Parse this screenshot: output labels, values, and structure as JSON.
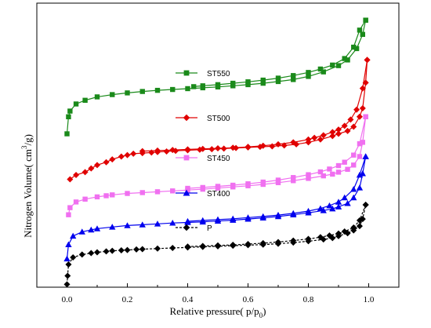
{
  "chart_data": {
    "type": "line",
    "xlabel": "Relative pressure( p/p",
    "xlabel_sub": "0",
    "xlabel_close": ")",
    "ylabel_main": "Nitrogen Volume( cm",
    "ylabel_sup": "3",
    "ylabel_close": "/g)",
    "xlim": [
      -0.1,
      1.1
    ],
    "x_ticks": [
      "0.0",
      "0.2",
      "0.4",
      "0.6",
      "0.8",
      "1.0"
    ],
    "x_tick_values": [
      0.0,
      0.2,
      0.4,
      0.6,
      0.8,
      1.0
    ],
    "y_ticks_labeled": false,
    "ylim": [
      0,
      100
    ],
    "grid": false,
    "legend_placement": "inline",
    "series": [
      {
        "name": "ST550",
        "color": "#1a8a1a",
        "marker": "square",
        "adsorption": {
          "x": [
            0.0,
            0.005,
            0.01,
            0.03,
            0.06,
            0.1,
            0.15,
            0.2,
            0.25,
            0.3,
            0.35,
            0.4,
            0.45,
            0.5,
            0.55,
            0.6,
            0.65,
            0.7,
            0.75,
            0.8,
            0.85,
            0.9,
            0.93,
            0.96,
            0.98,
            0.99
          ],
          "y": [
            54.0,
            60.0,
            62.0,
            64.5,
            65.8,
            67.0,
            67.8,
            68.4,
            68.9,
            69.3,
            69.6,
            69.9,
            70.2,
            70.5,
            70.9,
            71.3,
            71.8,
            72.4,
            73.1,
            74.2,
            75.8,
            78.0,
            80.0,
            84.0,
            89.0,
            94.0
          ]
        },
        "desorption": {
          "x": [
            0.99,
            0.97,
            0.95,
            0.92,
            0.88,
            0.84,
            0.8,
            0.75,
            0.7,
            0.65,
            0.6,
            0.55,
            0.5,
            0.45,
            0.42
          ],
          "y": [
            94.0,
            90.5,
            84.5,
            80.5,
            78.2,
            76.8,
            75.6,
            74.5,
            73.6,
            72.9,
            72.3,
            71.8,
            71.3,
            70.9,
            70.6
          ]
        }
      },
      {
        "name": "ST500",
        "color": "#e00000",
        "marker": "diamond",
        "adsorption": {
          "x": [
            0.01,
            0.03,
            0.06,
            0.08,
            0.1,
            0.13,
            0.15,
            0.18,
            0.2,
            0.22,
            0.25,
            0.28,
            0.3,
            0.33,
            0.36,
            0.4,
            0.44,
            0.48,
            0.52,
            0.56,
            0.6,
            0.64,
            0.68,
            0.72,
            0.76,
            0.8,
            0.84,
            0.88,
            0.9,
            0.93,
            0.95,
            0.97,
            0.98,
            0.99,
            0.995
          ],
          "y": [
            38.0,
            39.5,
            40.5,
            41.8,
            43.0,
            44.0,
            45.0,
            46.0,
            46.5,
            47.0,
            47.2,
            47.4,
            47.6,
            47.8,
            48.0,
            48.2,
            48.4,
            48.6,
            48.8,
            49.0,
            49.2,
            49.4,
            49.6,
            49.9,
            50.3,
            51.0,
            52.0,
            53.2,
            54.0,
            55.0,
            56.5,
            60.0,
            63.0,
            72.0,
            80.0
          ]
        },
        "desorption": {
          "x": [
            0.995,
            0.98,
            0.96,
            0.94,
            0.92,
            0.9,
            0.88,
            0.85,
            0.82,
            0.8,
            0.75,
            0.7,
            0.65,
            0.6,
            0.55,
            0.5,
            0.45,
            0.4,
            0.35,
            0.3,
            0.25
          ],
          "y": [
            80.0,
            70.0,
            62.5,
            59.0,
            56.8,
            55.5,
            54.6,
            53.5,
            52.6,
            52.0,
            51.0,
            50.3,
            49.8,
            49.4,
            49.1,
            48.9,
            48.7,
            48.5,
            48.3,
            48.1,
            47.9
          ]
        }
      },
      {
        "name": "ST450",
        "color": "#f070f0",
        "marker": "square",
        "adsorption": {
          "x": [
            0.005,
            0.01,
            0.03,
            0.06,
            0.1,
            0.13,
            0.15,
            0.2,
            0.25,
            0.3,
            0.35,
            0.4,
            0.45,
            0.5,
            0.55,
            0.6,
            0.65,
            0.7,
            0.75,
            0.8,
            0.85,
            0.88,
            0.9,
            0.93,
            0.95,
            0.97,
            0.98,
            0.99
          ],
          "y": [
            25.5,
            28.0,
            30.0,
            31.0,
            31.8,
            32.2,
            32.5,
            33.0,
            33.3,
            33.6,
            33.9,
            34.2,
            34.5,
            34.9,
            35.3,
            35.7,
            36.2,
            36.8,
            37.5,
            38.3,
            39.2,
            39.8,
            40.5,
            41.5,
            43.0,
            46.0,
            51.0,
            60.0
          ]
        },
        "desorption": {
          "x": [
            0.99,
            0.97,
            0.95,
            0.92,
            0.9,
            0.87,
            0.84,
            0.8,
            0.75,
            0.7,
            0.65,
            0.6,
            0.55,
            0.5,
            0.45,
            0.4
          ],
          "y": [
            60.0,
            50.5,
            46.5,
            44.0,
            42.8,
            41.6,
            40.6,
            39.6,
            38.6,
            37.7,
            37.0,
            36.4,
            35.9,
            35.5,
            35.1,
            34.8
          ]
        }
      },
      {
        "name": "ST400",
        "color": "#0000ee",
        "marker": "triangle",
        "adsorption": {
          "x": [
            0.0,
            0.005,
            0.02,
            0.05,
            0.08,
            0.1,
            0.15,
            0.2,
            0.25,
            0.3,
            0.35,
            0.4,
            0.45,
            0.5,
            0.55,
            0.6,
            0.65,
            0.7,
            0.75,
            0.8,
            0.85,
            0.88,
            0.9,
            0.93,
            0.95,
            0.97,
            0.98,
            0.99
          ],
          "y": [
            10.0,
            15.0,
            18.0,
            19.5,
            20.2,
            20.6,
            21.2,
            21.7,
            22.0,
            22.3,
            22.6,
            22.8,
            23.0,
            23.3,
            23.6,
            24.0,
            24.4,
            24.9,
            25.5,
            26.2,
            27.0,
            27.6,
            28.3,
            29.5,
            31.5,
            35.0,
            40.0,
            46.0
          ]
        },
        "desorption": {
          "x": [
            0.99,
            0.97,
            0.95,
            0.92,
            0.9,
            0.87,
            0.84,
            0.8,
            0.75,
            0.7,
            0.65,
            0.6,
            0.55,
            0.5,
            0.45,
            0.4
          ],
          "y": [
            46.0,
            39.5,
            34.5,
            31.5,
            30.0,
            28.7,
            27.7,
            26.8,
            26.0,
            25.4,
            24.9,
            24.5,
            24.1,
            23.8,
            23.5,
            23.2
          ]
        }
      },
      {
        "name": "P",
        "color": "#000000",
        "marker": "diamond",
        "adsorption": {
          "x": [
            0.0,
            0.002,
            0.005,
            0.02,
            0.05,
            0.08,
            0.1,
            0.13,
            0.15,
            0.18,
            0.2,
            0.23,
            0.25,
            0.3,
            0.35,
            0.4,
            0.45,
            0.5,
            0.55,
            0.6,
            0.65,
            0.7,
            0.75,
            0.8,
            0.85,
            0.88,
            0.9,
            0.93,
            0.95,
            0.97,
            0.98,
            0.99
          ],
          "y": [
            1.0,
            4.0,
            8.0,
            10.5,
            11.5,
            12.0,
            12.3,
            12.6,
            12.8,
            13.0,
            13.1,
            13.3,
            13.4,
            13.6,
            13.8,
            14.0,
            14.2,
            14.4,
            14.6,
            14.8,
            15.0,
            15.3,
            15.7,
            16.2,
            16.8,
            17.3,
            18.0,
            19.0,
            20.0,
            21.5,
            24.0,
            29.0
          ]
        },
        "desorption": {
          "x": [
            0.99,
            0.97,
            0.95,
            0.92,
            0.9,
            0.87,
            0.84,
            0.8,
            0.75,
            0.7,
            0.65,
            0.6,
            0.55,
            0.5,
            0.45,
            0.4
          ],
          "y": [
            29.0,
            23.5,
            21.0,
            19.6,
            18.9,
            18.2,
            17.6,
            17.0,
            16.4,
            15.9,
            15.5,
            15.2,
            14.9,
            14.7,
            14.5,
            14.3
          ]
        }
      }
    ]
  }
}
